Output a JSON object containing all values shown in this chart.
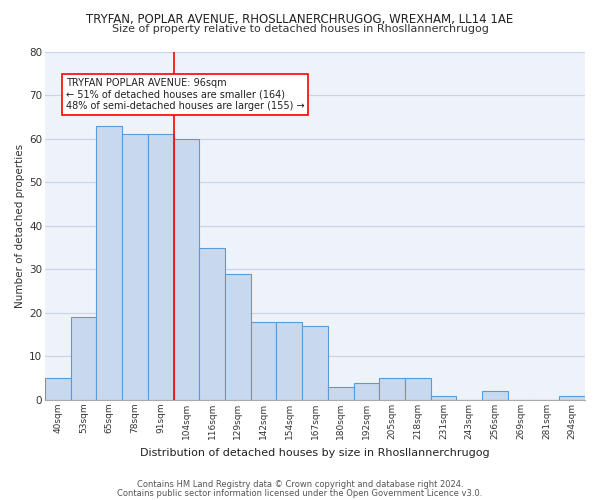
{
  "title": "TRYFAN, POPLAR AVENUE, RHOSLLANERCHRUGOG, WREXHAM, LL14 1AE",
  "subtitle": "Size of property relative to detached houses in Rhosllannerchrugog",
  "xlabel": "Distribution of detached houses by size in Rhosllannerchrugog",
  "ylabel": "Number of detached properties",
  "categories": [
    "40sqm",
    "53sqm",
    "65sqm",
    "78sqm",
    "91sqm",
    "104sqm",
    "116sqm",
    "129sqm",
    "142sqm",
    "154sqm",
    "167sqm",
    "180sqm",
    "192sqm",
    "205sqm",
    "218sqm",
    "231sqm",
    "243sqm",
    "256sqm",
    "269sqm",
    "281sqm",
    "294sqm"
  ],
  "values": [
    5,
    19,
    63,
    61,
    61,
    60,
    35,
    29,
    18,
    18,
    17,
    3,
    4,
    5,
    5,
    1,
    0,
    2,
    0,
    0,
    1
  ],
  "bar_color": "#c9d9ed",
  "bar_edge_color": "#5b9bd5",
  "grid_color": "#c8d4e8",
  "bg_color": "#eef2f9",
  "red_line_x": 4.5,
  "annotation_text": "TRYFAN POPLAR AVENUE: 96sqm\n← 51% of detached houses are smaller (164)\n48% of semi-detached houses are larger (155) →",
  "annotation_box_color": "white",
  "annotation_box_edge": "red",
  "footer1": "Contains HM Land Registry data © Crown copyright and database right 2024.",
  "footer2": "Contains public sector information licensed under the Open Government Licence v3.0.",
  "ylim": [
    0,
    80
  ],
  "yticks": [
    0,
    10,
    20,
    30,
    40,
    50,
    60,
    70,
    80
  ]
}
